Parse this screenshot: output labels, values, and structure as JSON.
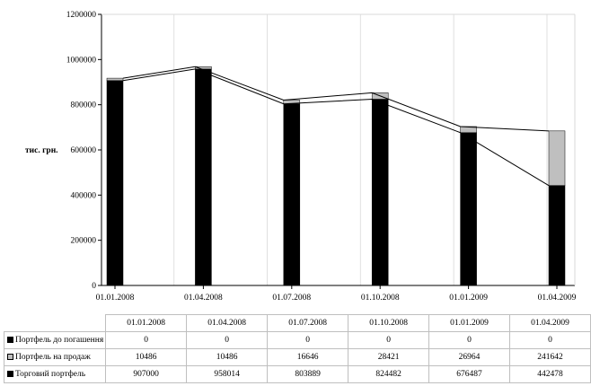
{
  "chart_data": {
    "type": "bar",
    "stacked": true,
    "categories": [
      "01.01.2008",
      "01.04.2008",
      "01.07.2008",
      "01.10.2008",
      "01.01.2009",
      "01.04.2009"
    ],
    "series": [
      {
        "name": "Торговий портфель",
        "values": [
          907000,
          958014,
          803889,
          824482,
          676487,
          442478
        ],
        "color": "#000000"
      },
      {
        "name": "Портфель на продаж",
        "values": [
          10486,
          10486,
          16646,
          28421,
          26964,
          241642
        ],
        "color": "#bfbfbf"
      },
      {
        "name": "Портфель до погашення",
        "values": [
          0,
          0,
          0,
          0,
          0,
          0
        ],
        "color": "#000000"
      }
    ],
    "ylabel": "тис. грн.",
    "yticks": [
      "0",
      "200000",
      "400000",
      "600000",
      "800000",
      "1000000",
      "1200000"
    ],
    "ylim": [
      0,
      1200000
    ],
    "grid": "vertical",
    "lines": [
      "Торговий портфель",
      "total"
    ],
    "legend": "table-below"
  },
  "table": {
    "header": [
      "01.01.2008",
      "01.04.2008",
      "01.07.2008",
      "01.10.2008",
      "01.01.2009",
      "01.04.2009"
    ],
    "rows": [
      {
        "label": "Портфель до погашення",
        "key_color": "#000000",
        "values": [
          "0",
          "0",
          "0",
          "0",
          "0",
          "0"
        ]
      },
      {
        "label": "Портфель на продаж",
        "key_color": "#bfbfbf",
        "values": [
          "10486",
          "10486",
          "16646",
          "28421",
          "26964",
          "241642"
        ]
      },
      {
        "label": "Торговий портфель",
        "key_color": "#000000",
        "values": [
          "907000",
          "958014",
          "803889",
          "824482",
          "676487",
          "442478"
        ]
      }
    ]
  }
}
